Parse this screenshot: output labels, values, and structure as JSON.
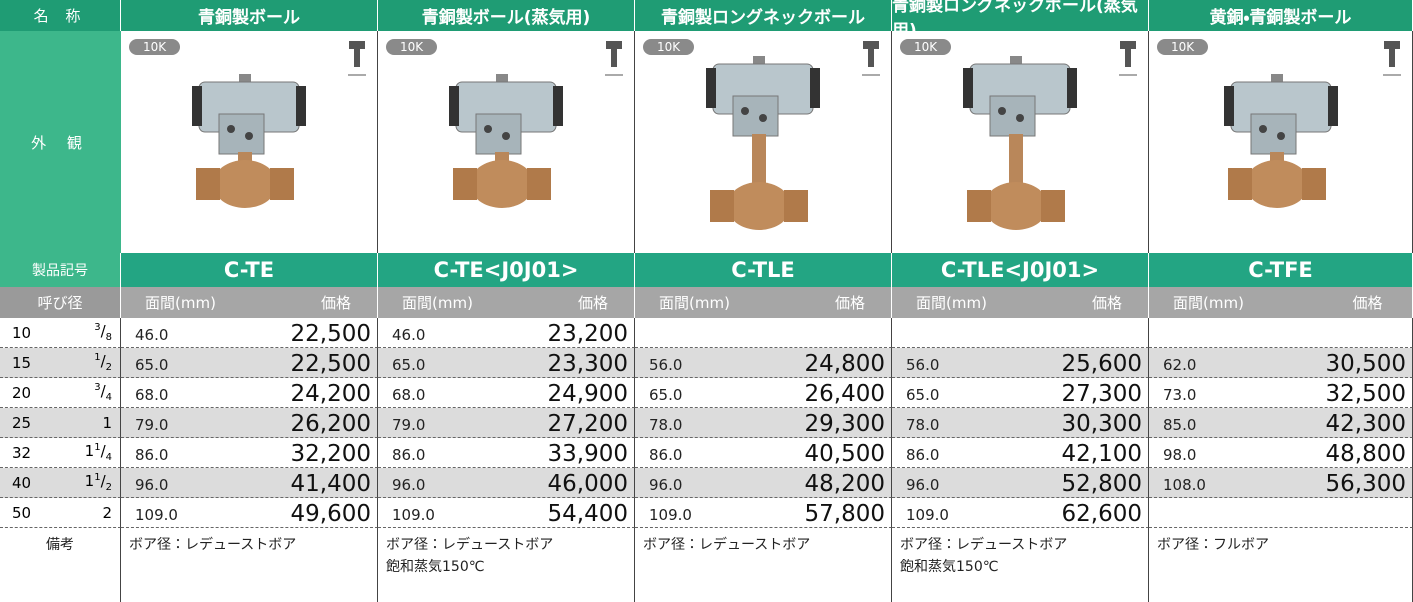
{
  "header": {
    "label": "名 称",
    "products": [
      "青銅製ボール",
      "青銅製ボール(蒸気用)",
      "青銅製ロングネックボール",
      "青銅製ロングネックボール(蒸気用)",
      "黄銅・青銅製ボール"
    ]
  },
  "appearance": {
    "label": "外 観",
    "badge": "10K"
  },
  "codes": {
    "label": "製品記号",
    "values": [
      "C-TE",
      "C-TE<J0J01>",
      "C-TLE",
      "C-TLE<J0J01>",
      "C-TFE"
    ]
  },
  "subheader": {
    "nominal": "呼び径",
    "face": "面間(mm)",
    "price": "価格"
  },
  "rows": [
    {
      "dn": "10",
      "num": "3",
      "den": "8",
      "cells": [
        {
          "face": "46.0",
          "price": "22,500"
        },
        {
          "face": "46.0",
          "price": "23,200"
        },
        null,
        null,
        null
      ]
    },
    {
      "dn": "15",
      "num": "1",
      "den": "2",
      "cells": [
        {
          "face": "65.0",
          "price": "22,500"
        },
        {
          "face": "65.0",
          "price": "23,300"
        },
        {
          "face": "56.0",
          "price": "24,800"
        },
        {
          "face": "56.0",
          "price": "25,600"
        },
        {
          "face": "62.0",
          "price": "30,500"
        }
      ]
    },
    {
      "dn": "20",
      "num": "3",
      "den": "4",
      "cells": [
        {
          "face": "68.0",
          "price": "24,200"
        },
        {
          "face": "68.0",
          "price": "24,900"
        },
        {
          "face": "65.0",
          "price": "26,400"
        },
        {
          "face": "65.0",
          "price": "27,300"
        },
        {
          "face": "73.0",
          "price": "32,500"
        }
      ]
    },
    {
      "dn": "25",
      "whole": "1",
      "cells": [
        {
          "face": "79.0",
          "price": "26,200"
        },
        {
          "face": "79.0",
          "price": "27,200"
        },
        {
          "face": "78.0",
          "price": "29,300"
        },
        {
          "face": "78.0",
          "price": "30,300"
        },
        {
          "face": "85.0",
          "price": "42,300"
        }
      ]
    },
    {
      "dn": "32",
      "whole": "1",
      "num": "1",
      "den": "4",
      "cells": [
        {
          "face": "86.0",
          "price": "32,200"
        },
        {
          "face": "86.0",
          "price": "33,900"
        },
        {
          "face": "86.0",
          "price": "40,500"
        },
        {
          "face": "86.0",
          "price": "42,100"
        },
        {
          "face": "98.0",
          "price": "48,800"
        }
      ]
    },
    {
      "dn": "40",
      "whole": "1",
      "num": "1",
      "den": "2",
      "cells": [
        {
          "face": "96.0",
          "price": "41,400"
        },
        {
          "face": "96.0",
          "price": "46,000"
        },
        {
          "face": "96.0",
          "price": "48,200"
        },
        {
          "face": "96.0",
          "price": "52,800"
        },
        {
          "face": "108.0",
          "price": "56,300"
        }
      ]
    },
    {
      "dn": "50",
      "whole": "2",
      "cells": [
        {
          "face": "109.0",
          "price": "49,600"
        },
        {
          "face": "109.0",
          "price": "54,400"
        },
        {
          "face": "109.0",
          "price": "57,800"
        },
        {
          "face": "109.0",
          "price": "62,600"
        },
        null
      ]
    }
  ],
  "remarks": {
    "label": "備考",
    "values": [
      [
        "ボア径：レデューストボア"
      ],
      [
        "ボア径：レデューストボア",
        "飽和蒸気150℃"
      ],
      [
        "ボア径：レデューストボア"
      ],
      [
        "ボア径：レデューストボア",
        "飽和蒸気150℃"
      ],
      [
        "ボア径：フルボア"
      ]
    ]
  }
}
